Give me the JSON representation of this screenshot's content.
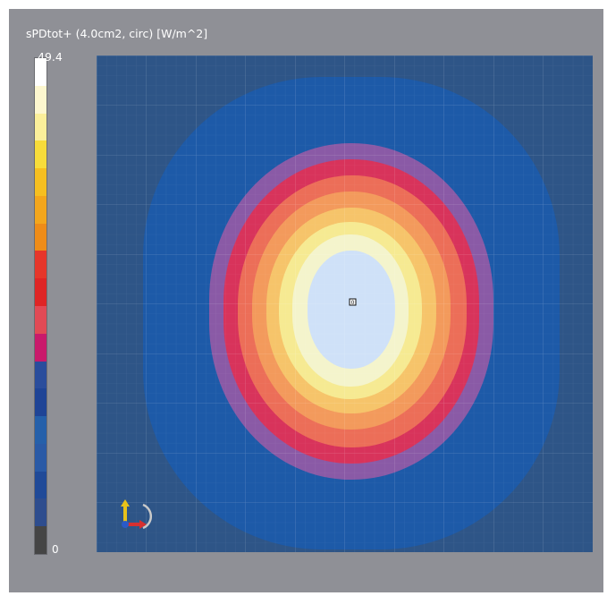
{
  "title": "sPDtot+ (4.0cm2, circ) [W/m^2]",
  "chart_data": {
    "type": "heatmap",
    "title": "sPDtot+ (4.0cm2, circ) [W/m^2]",
    "colorbar": {
      "max_label": "49.4",
      "min_label": "0",
      "min": 0,
      "max": 49.4,
      "colors": [
        "#ffffff",
        "#fdf7cf",
        "#fbef9a",
        "#f7dc3a",
        "#f6bf20",
        "#f3a61c",
        "#ee8c18",
        "#e6362a",
        "#df2525",
        "#e14a55",
        "#c91a6b",
        "#2a4d9c",
        "#1f4496",
        "#2560aa",
        "#2a5aa6",
        "#204a98",
        "#2e4d8e",
        "#454545"
      ]
    },
    "contour_levels": [
      {
        "name": "background",
        "color": "#2e5587"
      },
      {
        "name": "level-1",
        "color": "#1d5aa8"
      },
      {
        "name": "level-2",
        "color": "#8a5aa6"
      },
      {
        "name": "level-3",
        "color": "#d8335b"
      },
      {
        "name": "level-4",
        "color": "#ec6e58"
      },
      {
        "name": "level-5",
        "color": "#f39a5c"
      },
      {
        "name": "level-6",
        "color": "#f6c46a"
      },
      {
        "name": "level-7",
        "color": "#f6ea92"
      },
      {
        "name": "level-8",
        "color": "#f4f4cc"
      },
      {
        "name": "peak",
        "color": "#cfe1f8"
      }
    ],
    "peak_marker": "0",
    "grid": true
  }
}
